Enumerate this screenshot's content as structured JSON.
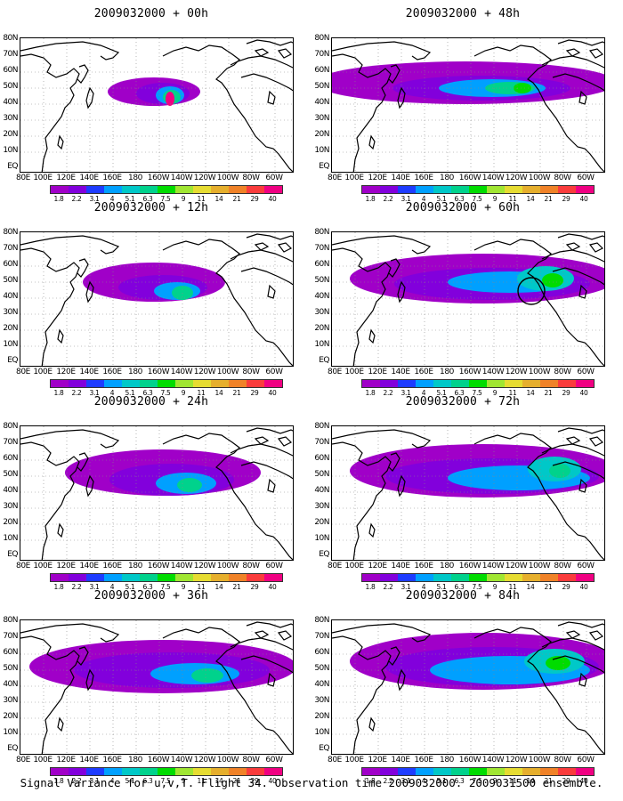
{
  "panels": [
    {
      "title": "2009032000 + 00h",
      "circle": null
    },
    {
      "title": "2009032000 + 48h",
      "circle": null
    },
    {
      "title": "2009032000 + 12h",
      "circle": null
    },
    {
      "title": "2009032000 + 60h",
      "circle": "black"
    },
    {
      "title": "2009032000 + 24h",
      "circle": null
    },
    {
      "title": "2009032000 + 72h",
      "circle": null
    },
    {
      "title": "2009032000 + 36h",
      "circle": null
    },
    {
      "title": "2009032000 + 84h",
      "circle": null
    }
  ],
  "lat_labels": [
    "80N",
    "70N",
    "60N",
    "50N",
    "40N",
    "30N",
    "20N",
    "10N",
    "EQ"
  ],
  "lon_labels": [
    "80E",
    "100E",
    "120E",
    "140E",
    "160E",
    "180",
    "160W",
    "140W",
    "120W",
    "100W",
    "80W",
    "60W"
  ],
  "colorbar": {
    "labels": [
      "1.8",
      "2.2",
      "3.1",
      "4",
      "5.1",
      "6.3",
      "7.5",
      "9",
      "11",
      "14",
      "21",
      "29",
      "40"
    ],
    "colors": [
      "#a000c8",
      "#8200dc",
      "#1e3cff",
      "#00a0ff",
      "#00c8c8",
      "#00d28c",
      "#00dc00",
      "#a0e632",
      "#e6dc32",
      "#e6af2d",
      "#f08228",
      "#fa3c3c",
      "#f00082"
    ]
  },
  "caption": "Signal Variance for u,v,T. Flight 34. Observation time 2009032000. 2009031500 ensemble."
}
